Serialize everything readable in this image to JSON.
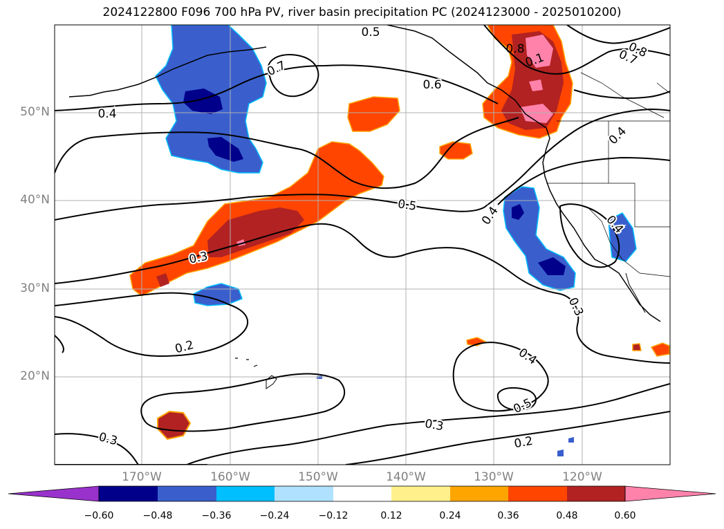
{
  "title": "2024122800 F096 700 hPa PV, river basin precipitation PC (2024123000 - 2025010200)",
  "latitude_labels": [
    "50°N",
    "40°N",
    "30°N",
    "20°N"
  ],
  "longitude_labels": [
    "170°W",
    "160°W",
    "150°W",
    "140°W",
    "130°W",
    "120°W"
  ],
  "contour_labels": [
    "0.5",
    "0.7",
    "0.6",
    "0.4",
    "0.5",
    "0.3",
    "0.4",
    "0.3",
    "0.2",
    "0.4",
    "0.5",
    "0.3",
    "0.2",
    "0.3",
    "0.8",
    "0.1",
    "0.8",
    "0.7",
    "0.4",
    "0.4"
  ],
  "colorbar": {
    "ticks": [
      "−0.60",
      "−0.48",
      "−0.36",
      "−0.24",
      "−0.12",
      "0.12",
      "0.24",
      "0.36",
      "0.48",
      "0.60"
    ],
    "colors": [
      "#9932cc",
      "#00008b",
      "#3a5fcd",
      "#00bfff",
      "#b0e2ff",
      "#ffffff",
      "#fff08c",
      "#ffa500",
      "#ff4500",
      "#b22222",
      "#ff82ab"
    ]
  }
}
